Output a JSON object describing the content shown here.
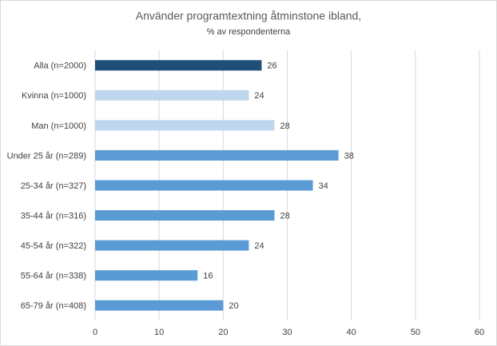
{
  "chart_data": {
    "type": "bar",
    "orientation": "horizontal",
    "title": "Använder programtextning åtminstone ibland,",
    "subtitle": "% av respondenterna",
    "categories": [
      "Alla (n=2000)",
      "Kvinna (n=1000)",
      "Man (n=1000)",
      "Under 25 år (n=289)",
      "25-34 år (n=327)",
      "35-44 år (n=316)",
      "45-54 år (n=322)",
      "55-64 år (n=338)",
      "65-79 år (n=408)"
    ],
    "values": [
      26,
      24,
      28,
      38,
      34,
      28,
      24,
      16,
      20
    ],
    "colors": [
      "#1f4e79",
      "#bdd7ee",
      "#bdd7ee",
      "#5b9bd5",
      "#5b9bd5",
      "#5b9bd5",
      "#5b9bd5",
      "#5b9bd5",
      "#5b9bd5"
    ],
    "xlim": [
      0,
      60
    ],
    "xticks": [
      0,
      10,
      20,
      30,
      40,
      50,
      60
    ],
    "grid": true
  }
}
